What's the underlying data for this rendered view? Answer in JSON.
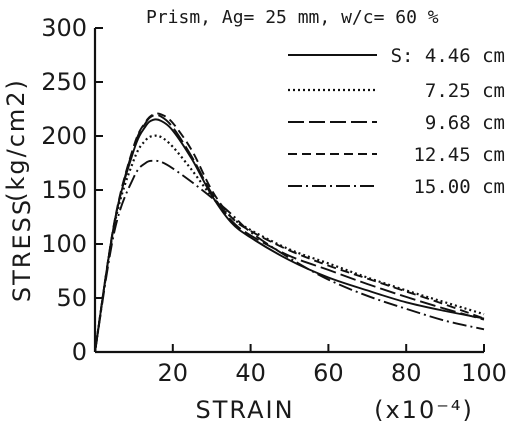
{
  "chart_data": {
    "type": "line",
    "title": "Prism, Ag= 25 mm, w/c= 60 %",
    "xlabel": "STRAIN",
    "xunit": "(x10⁻⁴)",
    "ylabel": "STRESS",
    "yunit": "(kg/cm2)",
    "xlim": [
      0,
      100
    ],
    "ylim": [
      0,
      300
    ],
    "xticks": [
      20,
      40,
      60,
      80,
      100
    ],
    "yticks": [
      0,
      50,
      100,
      150,
      200,
      250,
      300
    ],
    "grid": false,
    "legend_placement": "top-right",
    "series": [
      {
        "name": "S: 4.46 cm",
        "dash": "solid",
        "x": [
          0,
          5,
          10,
          13,
          15,
          17,
          20,
          25,
          30,
          35,
          40,
          50,
          60,
          70,
          80,
          90,
          100
        ],
        "y": [
          0,
          120,
          187,
          209,
          215,
          214,
          205,
          178,
          145,
          120,
          106,
          85,
          69,
          57,
          46,
          38,
          31
        ]
      },
      {
        "name": "7.25 cm",
        "dash": "dotted",
        "x": [
          0,
          5,
          10,
          13,
          15,
          17,
          20,
          25,
          30,
          35,
          40,
          50,
          60,
          70,
          80,
          90,
          100
        ],
        "y": [
          0,
          118,
          178,
          196,
          200,
          199,
          190,
          168,
          144,
          125,
          113,
          95,
          82,
          69,
          57,
          46,
          35
        ]
      },
      {
        "name": "9.68 cm",
        "dash": "longdash",
        "x": [
          0,
          5,
          10,
          13,
          15,
          17,
          20,
          25,
          30,
          35,
          40,
          50,
          60,
          70,
          80,
          90,
          100
        ],
        "y": [
          0,
          120,
          190,
          212,
          219,
          218,
          208,
          180,
          147,
          122,
          108,
          89,
          76,
          63,
          51,
          40,
          30
        ]
      },
      {
        "name": "12.45 cm",
        "dash": "dashed",
        "x": [
          0,
          5,
          10,
          13,
          15,
          17,
          20,
          25,
          30,
          35,
          40,
          50,
          60,
          70,
          80,
          90,
          100
        ],
        "y": [
          0,
          121,
          191,
          213,
          220,
          220,
          212,
          186,
          150,
          125,
          112,
          94,
          80,
          68,
          56,
          44,
          31
        ]
      },
      {
        "name": "15.00 cm",
        "dash": "dashdot",
        "x": [
          0,
          5,
          10,
          13,
          15,
          17,
          20,
          25,
          30,
          35,
          40,
          50,
          60,
          70,
          80,
          90,
          100
        ],
        "y": [
          0,
          112,
          162,
          175,
          177,
          176,
          170,
          157,
          143,
          128,
          111,
          87,
          67,
          52,
          40,
          29,
          21
        ]
      }
    ]
  }
}
